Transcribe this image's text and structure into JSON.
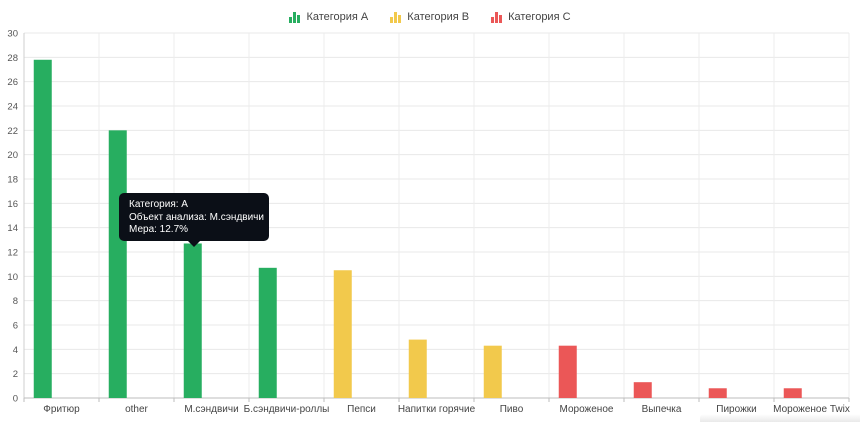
{
  "legend": [
    {
      "label": "Категория A",
      "color": "#27ae60"
    },
    {
      "label": "Категория B",
      "color": "#f2c94c"
    },
    {
      "label": "Категория C",
      "color": "#eb5757"
    }
  ],
  "tooltip": {
    "line1": "Категория: A",
    "line2": "Объект анализа: М.сэндвичи",
    "line3": "Мера: 12.7%"
  },
  "chart_data": {
    "type": "bar",
    "categories": [
      "Фритюр",
      "other",
      "М.сэндвичи",
      "Б.сэндвичи-роллы",
      "Пепси",
      "Напитки горячие",
      "Пиво",
      "Мороженое",
      "Выпечка",
      "Пирожки",
      "Мороженое Twix"
    ],
    "series": [
      {
        "name": "Категория A",
        "color": "#27ae60",
        "values": [
          27.8,
          22.0,
          12.7,
          10.7,
          null,
          null,
          null,
          null,
          null,
          null,
          null
        ]
      },
      {
        "name": "Категория B",
        "color": "#f2c94c",
        "values": [
          null,
          null,
          null,
          null,
          10.5,
          4.8,
          4.3,
          null,
          null,
          null,
          null
        ]
      },
      {
        "name": "Категория C",
        "color": "#eb5757",
        "values": [
          null,
          null,
          null,
          null,
          null,
          null,
          null,
          4.3,
          1.3,
          0.8,
          0.8
        ]
      }
    ],
    "ylim": [
      0,
      30
    ],
    "yticks": [
      0,
      2,
      4,
      6,
      8,
      10,
      12,
      14,
      16,
      18,
      20,
      22,
      24,
      26,
      28,
      30
    ],
    "grid": true,
    "legend_position": "top-center"
  }
}
